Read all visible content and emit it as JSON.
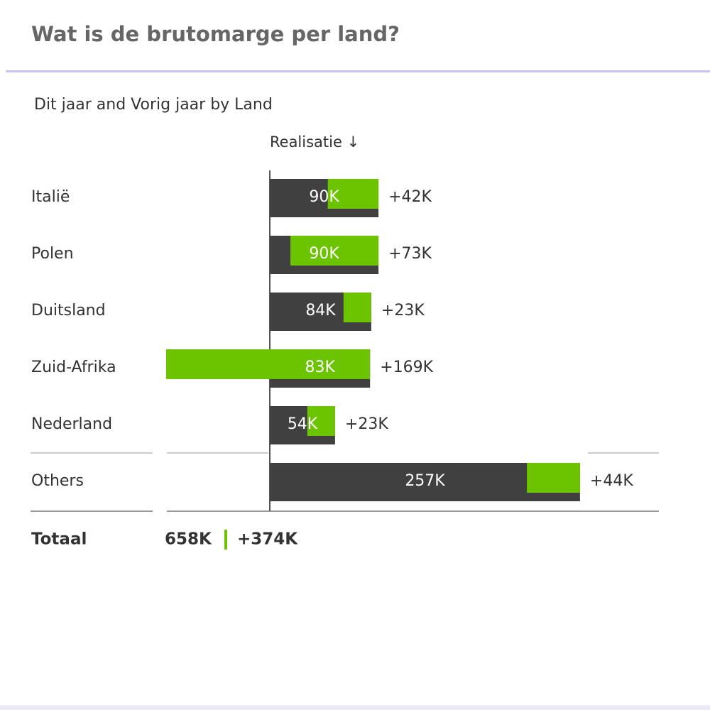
{
  "header": {
    "title": "Wat is de brutomarge per land?"
  },
  "chart_data": {
    "type": "variance-bar",
    "subtitle": "Dit jaar and Vorig jaar by Land",
    "column_header": "Realisatie ↓",
    "categories": [
      "Italië",
      "Polen",
      "Duitsland",
      "Zuid-Afrika",
      "Nederland",
      "Others"
    ],
    "values": [
      90000,
      90000,
      84000,
      83000,
      54000,
      257000
    ],
    "value_labels": [
      "90K",
      "90K",
      "84K",
      "83K",
      "54K",
      "257K"
    ],
    "deltas": [
      42000,
      73000,
      23000,
      169000,
      23000,
      44000
    ],
    "delta_labels": [
      "+42K",
      "+73K",
      "+23K",
      "+169K",
      "+23K",
      "+44K"
    ],
    "total_label": "Totaal",
    "total": 658000,
    "total_value_label": "658K",
    "total_delta": 374000,
    "total_delta_label": "+374K",
    "xlim": [
      -86000,
      260000
    ],
    "color": "#404040",
    "delta_color": "#6cc400"
  }
}
